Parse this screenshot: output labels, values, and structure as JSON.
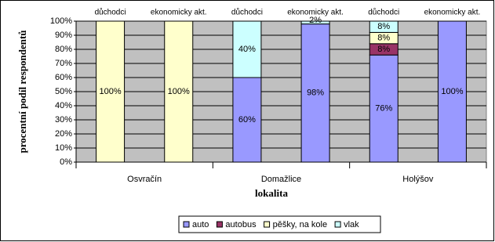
{
  "chart_data": {
    "type": "stacked_bar",
    "categories": [
      "důchodci",
      "ekonomicky akt.",
      "důchodci",
      "ekonomicky akt.",
      "důchodci",
      "ekonomicky akt."
    ],
    "groups": [
      "Osvračín",
      "Domažlice",
      "Holýšov"
    ],
    "x_label": "lokalita",
    "y_label": "procentní podíl respondentů",
    "ylim": [
      0,
      100
    ],
    "yticks": [
      {
        "value": 0,
        "label": "0%"
      },
      {
        "value": 10,
        "label": "10%"
      },
      {
        "value": 20,
        "label": "20%"
      },
      {
        "value": 30,
        "label": "30%"
      },
      {
        "value": 40,
        "label": "40%"
      },
      {
        "value": 50,
        "label": "50%"
      },
      {
        "value": 60,
        "label": "60%"
      },
      {
        "value": 70,
        "label": "70%"
      },
      {
        "value": 80,
        "label": "80%"
      },
      {
        "value": 90,
        "label": "90%"
      },
      {
        "value": 100,
        "label": "100%"
      }
    ],
    "grid": true,
    "legend": "bottom",
    "series": [
      {
        "name": "auto",
        "color": "#9999ff",
        "values": [
          0,
          0,
          60,
          98,
          76,
          100
        ],
        "value_labels": [
          null,
          null,
          "60%",
          "98%",
          "76%",
          "100%"
        ]
      },
      {
        "name": "autobus",
        "color": "#993366",
        "values": [
          0,
          0,
          0,
          0,
          8,
          0
        ],
        "value_labels": [
          null,
          null,
          null,
          null,
          "8%",
          null
        ]
      },
      {
        "name": "pěšky, na kole",
        "color": "#ffffcc",
        "values": [
          100,
          100,
          0,
          0,
          8,
          0
        ],
        "value_labels": [
          "100%",
          "100%",
          null,
          null,
          "8%",
          null
        ]
      },
      {
        "name": "vlak",
        "color": "#ccffff",
        "values": [
          0,
          0,
          40,
          2,
          8,
          0
        ],
        "value_labels": [
          null,
          null,
          "40%",
          "2%",
          "8%",
          null
        ]
      }
    ]
  }
}
